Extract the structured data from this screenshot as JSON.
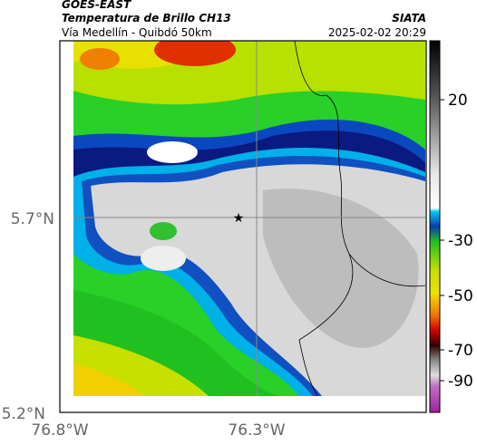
{
  "header": {
    "source": "GOES-EAST",
    "title": "Temperatura de Brillo CH13",
    "subtitle": "Vía Medellín - Quibdó 50km",
    "brand": "SIATA",
    "timestamp": "2025-02-02 20:29"
  },
  "axes": {
    "lat_ticks": [
      "5.7°N",
      "5.2°N"
    ],
    "lon_ticks": [
      "76.8°W",
      "76.3°W"
    ]
  },
  "colorbar": {
    "ticks": [
      "20",
      "-30",
      "-50",
      "-70",
      "-90"
    ]
  }
}
